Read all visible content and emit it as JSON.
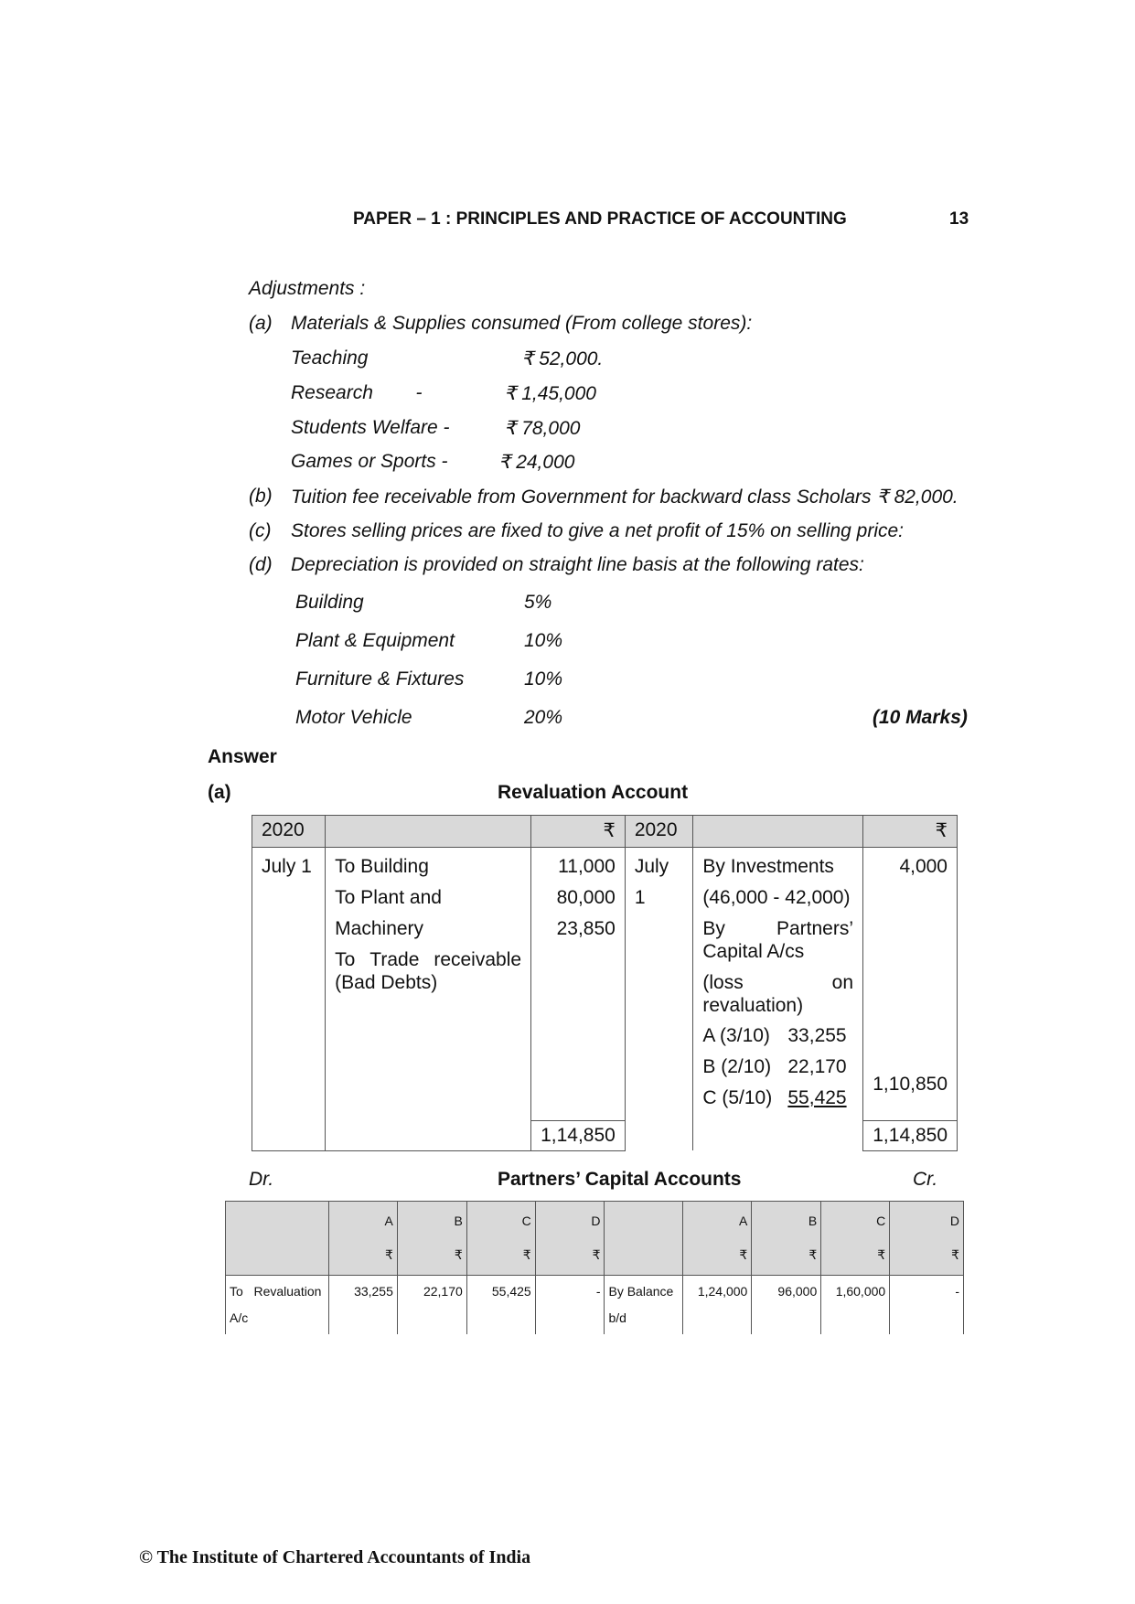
{
  "header": {
    "title": "PAPER – 1 : PRINCIPLES AND PRACTICE OF ACCOUNTING",
    "page": "13"
  },
  "adjustments": {
    "heading": "Adjustments :",
    "a": {
      "label": "(a)",
      "text": "Materials & Supplies consumed (From college stores):",
      "items": [
        {
          "name": "Teaching",
          "value": "₹ 52,000."
        },
        {
          "name": "Research        -",
          "value": "₹ 1,45,000"
        },
        {
          "name": "Students Welfare -",
          "value": "₹ 78,000"
        },
        {
          "name": "Games or Sports -",
          "value": "₹ 24,000"
        }
      ]
    },
    "b": {
      "label": "(b)",
      "text": "Tuition fee receivable from Government for backward class Scholars ₹ 82,000."
    },
    "c": {
      "label": "(c)",
      "text": "Stores selling prices are fixed to give a net profit of 15% on selling price:"
    },
    "d": {
      "label": "(d)",
      "text": "Depreciation is provided on straight line basis at the following rates:",
      "items": [
        {
          "name": "Building",
          "value": "5%"
        },
        {
          "name": "Plant & Equipment",
          "value": "10%"
        },
        {
          "name": "Furniture & Fixtures",
          "value": "10%"
        },
        {
          "name": "Motor Vehicle",
          "value": "20%"
        }
      ]
    },
    "marks": "(10 Marks)"
  },
  "answer": {
    "heading": "Answer",
    "part": "(a)"
  },
  "revaluation": {
    "title": "Revaluation Account",
    "header": {
      "year": "2020",
      "currency": "₹"
    },
    "debit": {
      "date": "July 1",
      "rows": [
        {
          "p": "To Building",
          "a": "11,000"
        },
        {
          "p": "To Plant and Machinery",
          "a": "80,000"
        },
        {
          "p1": "To",
          "p2": "Trade",
          "p3": "receivable",
          "p4": "(Bad Debts)",
          "a": "23,850"
        }
      ],
      "total": "1,14,850"
    },
    "credit": {
      "date": "July 1",
      "inv1": "By Investments",
      "inv2": "(46,000 - 42,000)",
      "inv_amt": "4,000",
      "cap1a": "By",
      "cap1b": "Partners’",
      "cap2": "Capital A/cs",
      "loss1a": "(loss",
      "loss1b": "on",
      "loss2": "revaluation)",
      "shares": [
        {
          "n": "A (3/10)",
          "v": "33,255"
        },
        {
          "n": "B (2/10)",
          "v": "22,170"
        },
        {
          "n": "C (5/10)",
          "v": "55,425"
        }
      ],
      "loss_total": "1,10,850",
      "total": "1,14,850"
    }
  },
  "capital": {
    "dr": "Dr.",
    "title": "Partners’ Capital Accounts",
    "cr": "Cr.",
    "cols": [
      "A",
      "B",
      "C",
      "D"
    ],
    "currency": "₹",
    "debit_row": {
      "p1": "To   Revaluation",
      "p2": "A/c",
      "vals": [
        "33,255",
        "22,170",
        "55,425",
        "-"
      ]
    },
    "credit_row": {
      "p1": "By Balance",
      "p2": "b/d",
      "vals": [
        "1,24,000",
        "96,000",
        "1,60,000",
        "-"
      ]
    }
  },
  "footer": "© The Institute of Chartered Accountants of India"
}
